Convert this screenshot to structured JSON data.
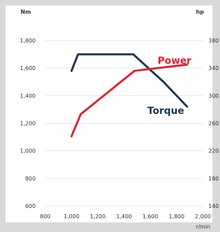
{
  "chart_data": {
    "type": "line",
    "left_axis": {
      "unit": "Nm",
      "ticks": [
        600,
        800,
        1000,
        1200,
        1400,
        1600,
        1800
      ],
      "tick_labels": [
        "600",
        "800",
        "1,000",
        "1,200",
        "1,400",
        "1,600",
        "1,800"
      ],
      "ylim": [
        600,
        1800
      ]
    },
    "right_axis": {
      "unit": "hp",
      "ticks": [
        140,
        180,
        220,
        260,
        300,
        340,
        380
      ],
      "tick_labels": [
        "140",
        "180",
        "220",
        "260",
        "300",
        "340",
        "380"
      ],
      "ylim": [
        140,
        380
      ]
    },
    "x_axis": {
      "unit": "r/min",
      "ticks": [
        800,
        1000,
        1200,
        1400,
        1600,
        1800,
        2000
      ],
      "tick_labels": [
        "800",
        "1,000",
        "1,200",
        "1,400",
        "1,600",
        "1,800",
        "2,000"
      ],
      "xlim": [
        800,
        2000
      ]
    },
    "grid": "horizontal",
    "series": [
      {
        "name": "Torque",
        "color": "#1e3553",
        "axis": "left",
        "points": [
          [
            1000,
            1580
          ],
          [
            1050,
            1700
          ],
          [
            1470,
            1700
          ],
          [
            1700,
            1500
          ],
          [
            1880,
            1320
          ]
        ]
      },
      {
        "name": "Power",
        "color": "#e11f2f",
        "axis": "right",
        "points": [
          [
            1000,
            241
          ],
          [
            1070,
            273
          ],
          [
            1480,
            336
          ],
          [
            1880,
            345
          ]
        ]
      }
    ]
  }
}
